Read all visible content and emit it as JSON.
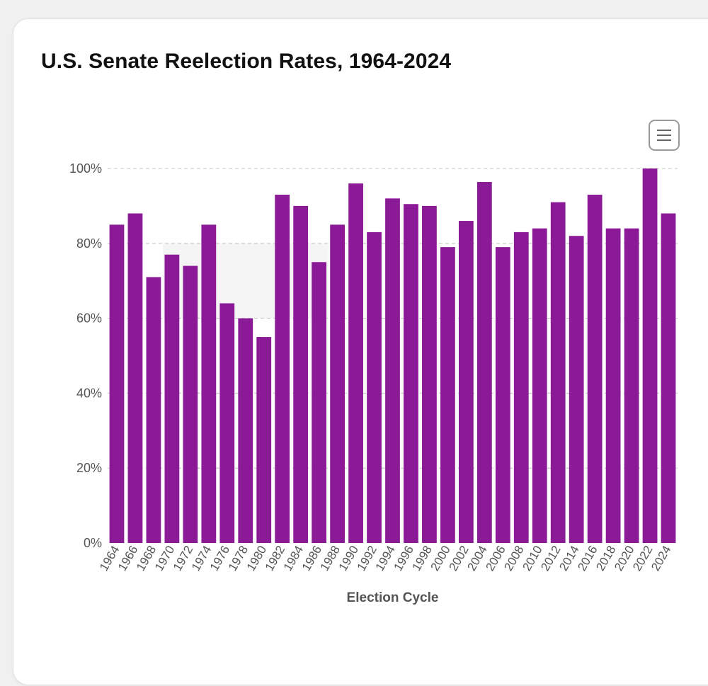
{
  "page": {
    "title": "U.S. Senate Reelection Rates, 1964-2024",
    "menu_icon": "hamburger-menu-icon"
  },
  "colors": {
    "bar": "#8b1a96",
    "grid": "#c4c4c4",
    "band": "#f5f5f5",
    "tick_text": "#555555",
    "axis_label": "#555555"
  },
  "chart_data": {
    "type": "bar",
    "title": "U.S. Senate Reelection Rates, 1964-2024",
    "xlabel": "Election Cycle",
    "ylabel": "",
    "ylim": [
      0,
      100
    ],
    "yticks": [
      0,
      20,
      40,
      60,
      80,
      100
    ],
    "ytick_labels": [
      "0%",
      "20%",
      "40%",
      "60%",
      "80%",
      "100%"
    ],
    "grid": true,
    "shaded_band": {
      "x_from": "1970",
      "x_to": "1986",
      "y_from": 60,
      "y_to": 80
    },
    "categories": [
      "1964",
      "1966",
      "1968",
      "1970",
      "1972",
      "1974",
      "1976",
      "1978",
      "1980",
      "1982",
      "1984",
      "1986",
      "1988",
      "1990",
      "1992",
      "1994",
      "1996",
      "1998",
      "2000",
      "2002",
      "2004",
      "2006",
      "2008",
      "2010",
      "2012",
      "2014",
      "2016",
      "2018",
      "2020",
      "2022",
      "2024"
    ],
    "values": [
      85,
      88,
      71,
      77,
      74,
      85,
      64,
      60,
      55,
      93,
      90,
      75,
      85,
      96,
      83,
      92,
      90.5,
      90,
      79,
      86,
      96.4,
      79,
      83,
      84,
      91,
      82,
      93,
      84,
      84,
      100,
      88
    ]
  }
}
